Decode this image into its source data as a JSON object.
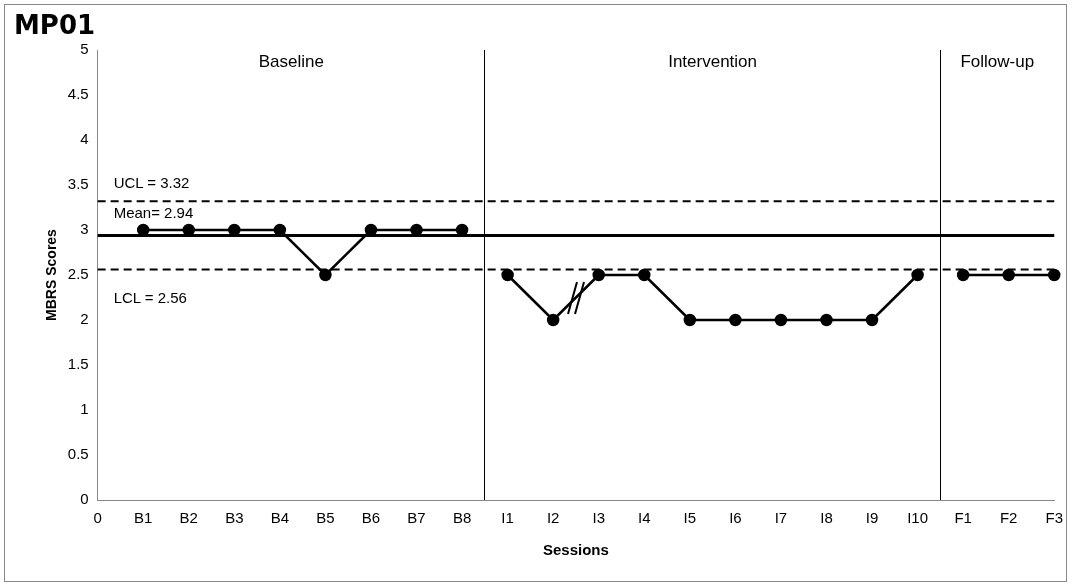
{
  "chart_data": {
    "type": "line",
    "title": "MP01",
    "xlabel": "Sessions",
    "ylabel": "MBRS Scores",
    "categories": [
      "0",
      "B1",
      "B2",
      "B3",
      "B4",
      "B5",
      "B6",
      "B7",
      "B8",
      "I1",
      "I2",
      "I3",
      "I4",
      "I5",
      "I6",
      "I7",
      "I8",
      "I9",
      "I10",
      "F1",
      "F2",
      "F3"
    ],
    "series": [
      {
        "color": "#000000",
        "values": [
          null,
          3,
          3,
          3,
          3,
          2.5,
          3,
          3,
          3,
          null,
          null,
          null,
          null,
          null,
          null,
          null,
          null,
          null,
          null,
          null,
          null,
          null
        ]
      },
      {
        "color": "#000000",
        "values": [
          null,
          null,
          null,
          null,
          null,
          null,
          null,
          null,
          null,
          2.5,
          2,
          2.5,
          2.5,
          2,
          2,
          2,
          2,
          2,
          2.5,
          null,
          null,
          null
        ]
      },
      {
        "color": "#000000",
        "values": [
          null,
          null,
          null,
          null,
          null,
          null,
          null,
          null,
          null,
          null,
          null,
          null,
          null,
          null,
          null,
          null,
          null,
          null,
          null,
          2.5,
          2.5,
          2.5
        ]
      }
    ],
    "ylim": [
      0,
      5
    ],
    "yticks": [
      0,
      0.5,
      1,
      1.5,
      2,
      2.5,
      3,
      3.5,
      4,
      4.5,
      5
    ],
    "grid": false,
    "legend": false,
    "marker": "circle",
    "line_style": "solid",
    "ref_lines": [
      {
        "axis": "y",
        "value": 3.32,
        "label": "UCL = 3.32",
        "line_style": "dashed",
        "color": "#000000"
      },
      {
        "axis": "y",
        "value": 2.94,
        "label": "Mean= 2.94",
        "line_style": "solid",
        "color": "#000000"
      },
      {
        "axis": "y",
        "value": 2.56,
        "label": "LCL = 2.56",
        "line_style": "dashed",
        "color": "#000000"
      }
    ],
    "annotations": [
      "Baseline",
      "Intervention",
      "Follow-up"
    ]
  }
}
